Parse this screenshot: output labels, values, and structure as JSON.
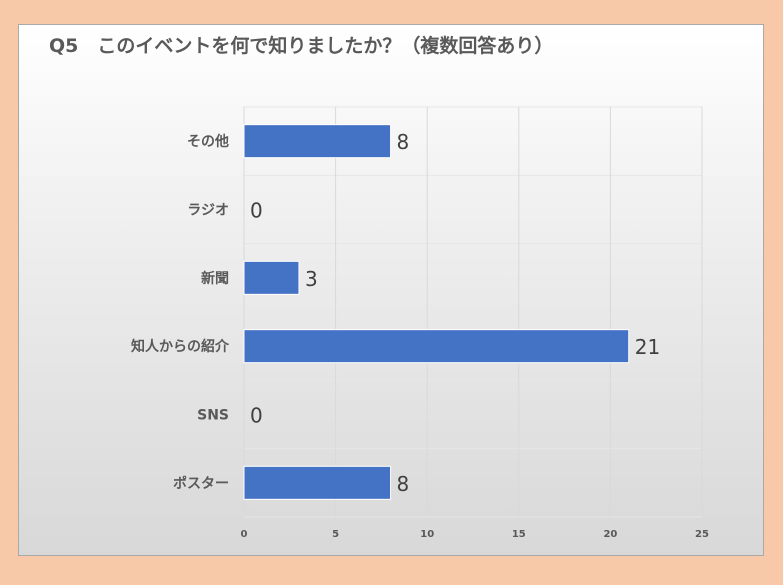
{
  "chart_data": {
    "type": "bar",
    "orientation": "horizontal",
    "title": "Q5　このイベントを何で知りましたか？（複数回答あり）",
    "categories": [
      "その他",
      "ラジオ",
      "新聞",
      "知人からの紹介",
      "SNS",
      "ポスター"
    ],
    "values": [
      8,
      0,
      3,
      21,
      0,
      8
    ],
    "xlim": [
      0,
      25
    ],
    "xticks": [
      "0",
      "5",
      "10",
      "15",
      "20",
      "25"
    ],
    "grid": true,
    "bar_color": "#4472c4",
    "xlabel": "",
    "ylabel": ""
  }
}
